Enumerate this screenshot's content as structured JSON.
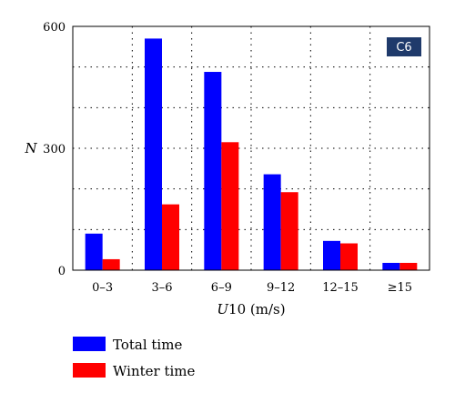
{
  "chart_data": {
    "type": "bar",
    "badge": "C6",
    "ylabel": "N",
    "xlabel_italic": "U",
    "xlabel_rest": "10 (m/s)",
    "categories": [
      "0–3",
      "3–6",
      "6–9",
      "9–12",
      "12–15",
      "≥15"
    ],
    "ylim": [
      0,
      600
    ],
    "yticks": [
      0,
      300,
      600
    ],
    "grid": true,
    "legend_position": "bottom-left",
    "series": [
      {
        "name": "Total time",
        "color": "#0000ff",
        "values": [
          90,
          570,
          488,
          236,
          72,
          18
        ]
      },
      {
        "name": "Winter time",
        "color": "#ff0000",
        "values": [
          27,
          162,
          315,
          192,
          66,
          18
        ]
      }
    ],
    "badge_color": "#1f3a6b"
  }
}
